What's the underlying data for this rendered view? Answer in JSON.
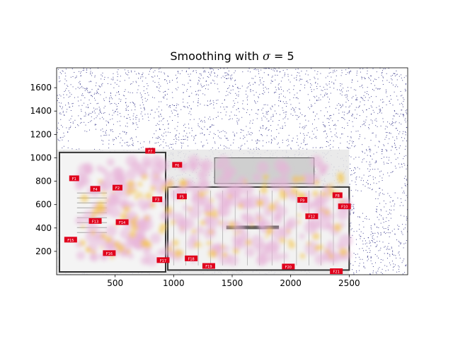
{
  "chart_data": {
    "type": "heatmap",
    "title_prefix": "Smoothing with ",
    "title_symbol": "σ",
    "title_suffix": " = 5",
    "xlabel": "",
    "ylabel": "",
    "xlim": [
      0,
      3000
    ],
    "ylim": [
      0,
      1770
    ],
    "x_ticks": [
      500,
      1000,
      1500,
      2000,
      2500
    ],
    "y_ticks": [
      200,
      400,
      600,
      800,
      1000,
      1200,
      1400,
      1600
    ],
    "background": "floor plan image",
    "colors": {
      "noise": "#1a1a7a",
      "heat_low": "#e7b3d9",
      "heat_high": "#f5c542",
      "marker": "#e0001b"
    },
    "floor_plan_extent": {
      "x": [
        0,
        2500
      ],
      "y": [
        0,
        1070
      ]
    },
    "marker_labels": [
      {
        "text": "F7",
        "x": 800,
        "y": 1060
      },
      {
        "text": "F6",
        "x": 1030,
        "y": 940
      },
      {
        "text": "F1",
        "x": 150,
        "y": 825
      },
      {
        "text": "F4",
        "x": 330,
        "y": 735
      },
      {
        "text": "F2",
        "x": 520,
        "y": 745
      },
      {
        "text": "F3",
        "x": 860,
        "y": 645
      },
      {
        "text": "F5",
        "x": 1070,
        "y": 670
      },
      {
        "text": "F8",
        "x": 2400,
        "y": 680
      },
      {
        "text": "F9",
        "x": 2100,
        "y": 640
      },
      {
        "text": "F10",
        "x": 2460,
        "y": 585
      },
      {
        "text": "F12",
        "x": 2180,
        "y": 500
      },
      {
        "text": "F13",
        "x": 330,
        "y": 460
      },
      {
        "text": "F14",
        "x": 560,
        "y": 450
      },
      {
        "text": "F15",
        "x": 120,
        "y": 300
      },
      {
        "text": "F16",
        "x": 450,
        "y": 185
      },
      {
        "text": "F17",
        "x": 910,
        "y": 125
      },
      {
        "text": "F18",
        "x": 1150,
        "y": 140
      },
      {
        "text": "F19",
        "x": 1300,
        "y": 75
      },
      {
        "text": "F20",
        "x": 1980,
        "y": 70
      },
      {
        "text": "F21",
        "x": 2390,
        "y": 30
      }
    ]
  }
}
